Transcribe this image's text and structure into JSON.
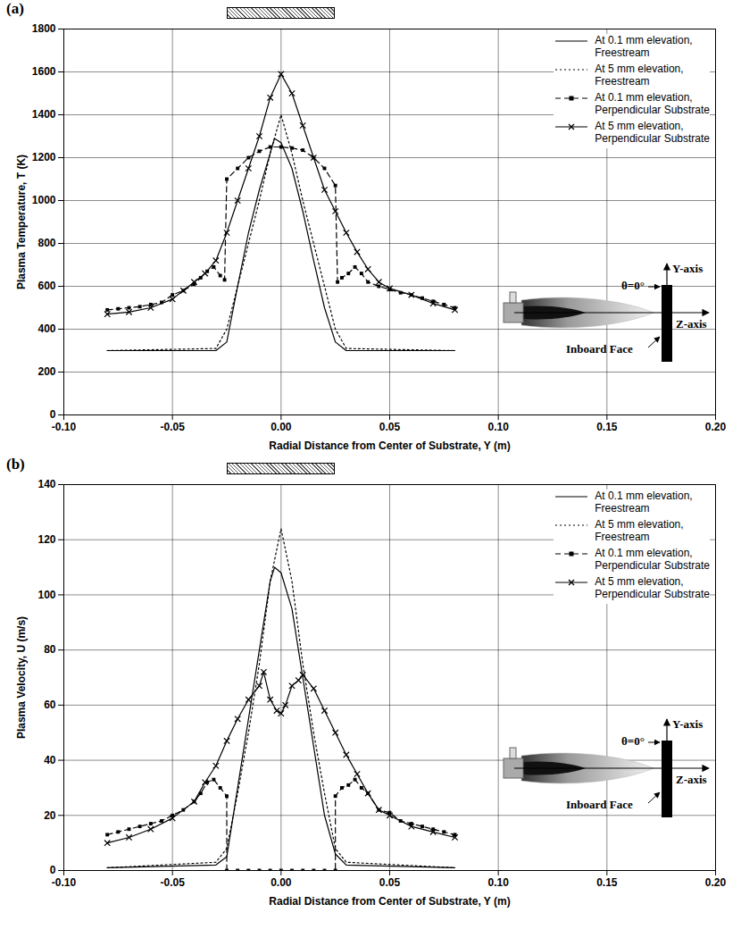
{
  "chart_data": [
    {
      "type": "line",
      "title": "(a)",
      "x_label": "Radial Distance from Center of Substrate, Y (m)",
      "y_label": "Plasma Temperature, T (K)",
      "xlim": [
        -0.1,
        0.2
      ],
      "xticks": [
        {
          "value": -0.1,
          "label": "-0.10"
        },
        {
          "value": -0.05,
          "label": "-0.05"
        },
        {
          "value": 0,
          "label": "0.00"
        },
        {
          "value": 0.05,
          "label": "0.05"
        },
        {
          "value": 0.1,
          "label": "0.10"
        },
        {
          "value": 0.15,
          "label": "0.15"
        },
        {
          "value": 0.2,
          "label": "0.20"
        }
      ],
      "ylim": [
        0,
        1800
      ],
      "yticks": [
        0,
        200,
        400,
        600,
        800,
        1000,
        1200,
        1400,
        1600,
        1800
      ],
      "grid": true,
      "legend": "upper right",
      "substrate_extent": [
        -0.025,
        0.025
      ],
      "annotations": [
        "Y-axis",
        "θ=0°",
        "Z-axis",
        "Inboard Face"
      ],
      "series": [
        {
          "name": "At 0.1 mm elevation, Freestream",
          "color": "#000000",
          "line_style": "solid",
          "marker": "none",
          "x": [
            -0.08,
            -0.03,
            -0.025,
            -0.02,
            -0.015,
            -0.01,
            -0.005,
            -0.003,
            0,
            0.005,
            0.01,
            0.015,
            0.02,
            0.025,
            0.03,
            0.08
          ],
          "values": [
            300,
            300,
            340,
            600,
            850,
            1050,
            1220,
            1290,
            1270,
            1150,
            950,
            720,
            500,
            340,
            300,
            300
          ]
        },
        {
          "name": "At 5 mm elevation, Freestream",
          "color": "#000000",
          "line_style": "dotted",
          "marker": "none",
          "x": [
            -0.08,
            -0.03,
            -0.025,
            -0.02,
            -0.015,
            -0.01,
            -0.005,
            0,
            0.005,
            0.01,
            0.015,
            0.02,
            0.025,
            0.03,
            0.08
          ],
          "values": [
            300,
            310,
            400,
            600,
            800,
            1000,
            1220,
            1400,
            1220,
            1000,
            800,
            600,
            400,
            310,
            300
          ]
        },
        {
          "name": "At 0.1 mm elevation, Perpendicular Substrate",
          "color": "#000000",
          "line_style": "dashed",
          "marker": "square",
          "x": [
            -0.08,
            -0.075,
            -0.07,
            -0.065,
            -0.06,
            -0.055,
            -0.05,
            -0.045,
            -0.04,
            -0.037,
            -0.034,
            -0.031,
            -0.028,
            -0.026,
            -0.025,
            -0.02,
            -0.015,
            -0.01,
            -0.005,
            0,
            0.005,
            0.01,
            0.015,
            0.02,
            0.025,
            0.026,
            0.028,
            0.031,
            0.034,
            0.037,
            0.04,
            0.045,
            0.05,
            0.055,
            0.06,
            0.065,
            0.07,
            0.075,
            0.08
          ],
          "values": [
            490,
            495,
            500,
            505,
            515,
            525,
            560,
            580,
            610,
            640,
            670,
            690,
            650,
            630,
            1100,
            1150,
            1200,
            1230,
            1250,
            1250,
            1245,
            1235,
            1200,
            1150,
            1070,
            620,
            640,
            660,
            690,
            660,
            620,
            600,
            585,
            570,
            560,
            545,
            530,
            515,
            500
          ]
        },
        {
          "name": "At 5 mm elevation, Perpendicular Substrate",
          "color": "#000000",
          "line_style": "solid",
          "marker": "x",
          "x": [
            -0.08,
            -0.07,
            -0.06,
            -0.05,
            -0.045,
            -0.04,
            -0.035,
            -0.03,
            -0.025,
            -0.02,
            -0.015,
            -0.01,
            -0.005,
            0,
            0.005,
            0.01,
            0.015,
            0.02,
            0.025,
            0.03,
            0.035,
            0.04,
            0.045,
            0.05,
            0.06,
            0.07,
            0.08
          ],
          "values": [
            470,
            480,
            500,
            540,
            580,
            620,
            660,
            720,
            850,
            1000,
            1150,
            1300,
            1480,
            1590,
            1500,
            1350,
            1200,
            1050,
            950,
            850,
            760,
            680,
            620,
            590,
            560,
            520,
            490
          ]
        }
      ]
    },
    {
      "type": "line",
      "title": "(b)",
      "x_label": "Radial Distance from Center of Substrate, Y (m)",
      "y_label": "Plasma Velocity, U (m/s)",
      "xlim": [
        -0.1,
        0.2
      ],
      "xticks": [
        {
          "value": -0.1,
          "label": "-0.10"
        },
        {
          "value": -0.05,
          "label": "-0.05"
        },
        {
          "value": 0,
          "label": "0.00"
        },
        {
          "value": 0.05,
          "label": "0.05"
        },
        {
          "value": 0.1,
          "label": "0.10"
        },
        {
          "value": 0.15,
          "label": "0.15"
        },
        {
          "value": 0.2,
          "label": "0.20"
        }
      ],
      "ylim": [
        0,
        140
      ],
      "yticks": [
        0,
        20,
        40,
        60,
        80,
        100,
        120,
        140
      ],
      "grid": true,
      "legend": "upper right",
      "substrate_extent": [
        -0.025,
        0.025
      ],
      "annotations": [
        "Y-axis",
        "θ=0°",
        "Z-axis",
        "Inboard Face"
      ],
      "series": [
        {
          "name": "At 0.1 mm elevation, Freestream",
          "color": "#000000",
          "line_style": "solid",
          "marker": "none",
          "x": [
            -0.08,
            -0.03,
            -0.025,
            -0.02,
            -0.015,
            -0.01,
            -0.005,
            -0.003,
            0,
            0.005,
            0.01,
            0.015,
            0.02,
            0.025,
            0.03,
            0.08
          ],
          "values": [
            1,
            2,
            5,
            30,
            55,
            80,
            105,
            110,
            108,
            95,
            70,
            45,
            20,
            6,
            2,
            1
          ]
        },
        {
          "name": "At 5 mm elevation, Freestream",
          "color": "#000000",
          "line_style": "dotted",
          "marker": "none",
          "x": [
            -0.08,
            -0.03,
            -0.025,
            -0.02,
            -0.015,
            -0.01,
            -0.005,
            0,
            0.005,
            0.01,
            0.015,
            0.02,
            0.025,
            0.03,
            0.08
          ],
          "values": [
            1,
            3,
            8,
            28,
            50,
            75,
            105,
            124,
            105,
            75,
            50,
            28,
            8,
            3,
            1
          ]
        },
        {
          "name": "At 0.1 mm elevation, Perpendicular Substrate",
          "color": "#000000",
          "line_style": "dashed",
          "marker": "square",
          "x": [
            -0.08,
            -0.075,
            -0.07,
            -0.065,
            -0.06,
            -0.055,
            -0.05,
            -0.045,
            -0.04,
            -0.037,
            -0.034,
            -0.031,
            -0.028,
            -0.025,
            -0.025,
            -0.02,
            -0.015,
            -0.01,
            -0.005,
            0,
            0.005,
            0.01,
            0.015,
            0.02,
            0.025,
            0.025,
            0.028,
            0.031,
            0.034,
            0.037,
            0.04,
            0.045,
            0.05,
            0.055,
            0.06,
            0.065,
            0.07,
            0.075,
            0.08
          ],
          "values": [
            13,
            14,
            15,
            16,
            17,
            18,
            20,
            22,
            25,
            28,
            32,
            33,
            30,
            27,
            0,
            0,
            0,
            0,
            0,
            0,
            0,
            0,
            0,
            0,
            0,
            27,
            30,
            31,
            33,
            30,
            28,
            22,
            21,
            18,
            17,
            16,
            15,
            14,
            13
          ]
        },
        {
          "name": "At 5 mm elevation, Perpendicular Substrate",
          "color": "#000000",
          "line_style": "solid",
          "marker": "x",
          "x": [
            -0.08,
            -0.07,
            -0.06,
            -0.05,
            -0.04,
            -0.035,
            -0.03,
            -0.025,
            -0.02,
            -0.015,
            -0.01,
            -0.008,
            -0.005,
            -0.002,
            0,
            0.002,
            0.005,
            0.008,
            0.01,
            0.015,
            0.02,
            0.025,
            0.03,
            0.035,
            0.04,
            0.045,
            0.05,
            0.06,
            0.07,
            0.08
          ],
          "values": [
            10,
            12,
            15,
            19,
            25,
            32,
            38,
            47,
            55,
            62,
            67,
            72,
            62,
            58,
            57,
            60,
            67,
            69,
            71,
            66,
            58,
            50,
            42,
            35,
            28,
            22,
            20,
            16,
            14,
            12
          ]
        }
      ]
    }
  ]
}
